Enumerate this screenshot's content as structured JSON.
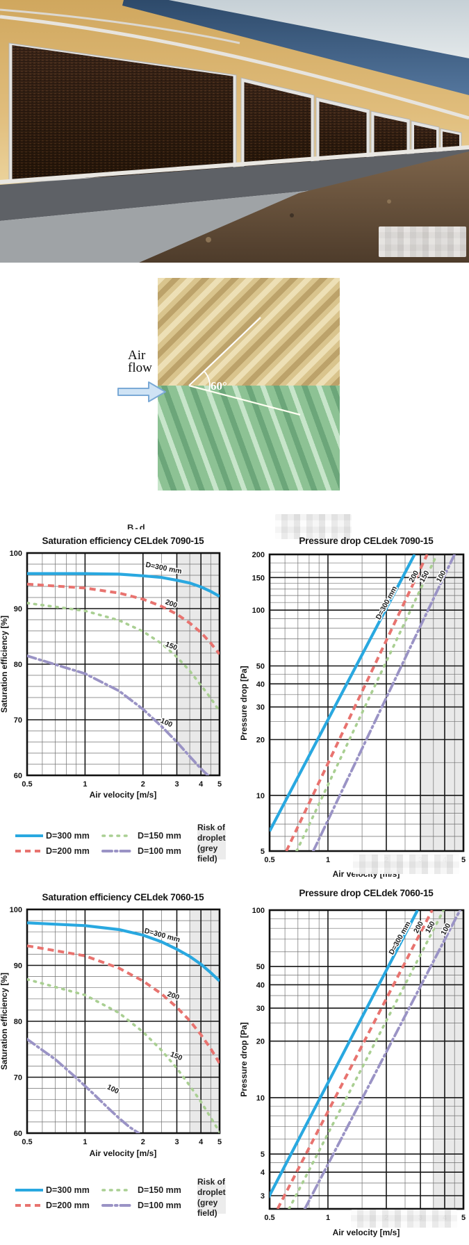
{
  "colors": {
    "blue": "#29A8E0",
    "red": "#E8736F",
    "green": "#A9CF92",
    "purple": "#9A93C5",
    "grey_band": "#E9E9E9",
    "grid_major": "#161616",
    "grid_minor": "#6F6F6F",
    "wall_yellow": "#DDB76E",
    "roof_blue": "#3F5F82",
    "sky": "#C9D2D8",
    "pad_brown": "#34200F",
    "arrow_fill": "#CFE3F5",
    "arrow_stroke": "#7AA9D6"
  },
  "airflow_figure": {
    "label_line1": "Air",
    "label_line2": "flow",
    "angle_label": "60°"
  },
  "caption_fragment": "B-d",
  "legend": {
    "items": [
      {
        "key": "d300",
        "label": "D=300 mm"
      },
      {
        "key": "d200",
        "label": "D=200 mm"
      },
      {
        "key": "d150",
        "label": "D=150 mm"
      },
      {
        "key": "d100",
        "label": "D=100 mm"
      }
    ],
    "risk_line1": "Risk of droplet",
    "risk_line2": "(grey field)"
  },
  "chart_data": [
    {
      "type": "line",
      "title": "Saturation efficiency CELdek 7090-15",
      "xlabel": "Air velocity [m/s]",
      "ylabel": "Saturation efficiency [%]",
      "xscale": "log",
      "yscale": "linear",
      "xlim": [
        0.5,
        5
      ],
      "ylim": [
        60,
        100
      ],
      "xticks": [
        0.5,
        1,
        2,
        3,
        4,
        5
      ],
      "xminor": [
        0.6,
        0.7,
        0.8,
        0.9,
        1.5,
        2.5,
        3.5,
        4.5
      ],
      "yticks": [
        60,
        70,
        80,
        90,
        100
      ],
      "yminor": [
        62,
        64,
        66,
        68,
        72,
        74,
        76,
        78,
        82,
        84,
        86,
        88,
        92,
        94,
        96,
        98
      ],
      "grey_band": [
        3,
        5
      ],
      "series": [
        {
          "name": "D=300 mm",
          "color_key": "blue",
          "dash": "solid",
          "label": {
            "text": "D=300 mm",
            "x": 2.55,
            "y": 96.9,
            "rot": 11
          },
          "points": [
            [
              0.5,
              96.3
            ],
            [
              1,
              96.3
            ],
            [
              1.5,
              96.2
            ],
            [
              2,
              95.9
            ],
            [
              2.5,
              95.6
            ],
            [
              3,
              95.1
            ],
            [
              3.5,
              94.6
            ],
            [
              4,
              93.9
            ],
            [
              4.5,
              93.1
            ],
            [
              5,
              92.2
            ]
          ]
        },
        {
          "name": "D=200 mm",
          "color_key": "red",
          "dash": "dash",
          "label": {
            "text": "200",
            "x": 2.78,
            "y": 90.5,
            "rot": 21
          },
          "points": [
            [
              0.5,
              94.4
            ],
            [
              1,
              93.7
            ],
            [
              1.5,
              92.8
            ],
            [
              2,
              91.7
            ],
            [
              2.5,
              90.4
            ],
            [
              3,
              89.0
            ],
            [
              3.5,
              87.4
            ],
            [
              4,
              85.7
            ],
            [
              4.5,
              83.8
            ],
            [
              5,
              81.8
            ]
          ]
        },
        {
          "name": "D=150 mm",
          "color_key": "green",
          "dash": "dot",
          "label": {
            "text": "150",
            "x": 2.78,
            "y": 82.9,
            "rot": 22
          },
          "points": [
            [
              0.5,
              91.0
            ],
            [
              1,
              89.6
            ],
            [
              1.5,
              87.9
            ],
            [
              2,
              85.9
            ],
            [
              2.5,
              83.7
            ],
            [
              3,
              81.3
            ],
            [
              3.5,
              78.8
            ],
            [
              4,
              76.2
            ],
            [
              4.5,
              73.9
            ],
            [
              5,
              71.5
            ]
          ]
        },
        {
          "name": "D=100 mm",
          "color_key": "purple",
          "dash": "dashdot",
          "label": {
            "text": "100",
            "x": 2.62,
            "y": 69.1,
            "rot": 24
          },
          "points": [
            [
              0.5,
              81.5
            ],
            [
              1,
              78.3
            ],
            [
              1.5,
              75.2
            ],
            [
              2,
              71.9
            ],
            [
              2.5,
              68.8
            ],
            [
              3,
              66.0
            ],
            [
              3.5,
              63.4
            ],
            [
              4,
              61.2
            ],
            [
              4.35,
              60.0
            ]
          ]
        }
      ]
    },
    {
      "type": "line",
      "title": "Pressure drop CELdek 7090-15",
      "xlabel": "Air velocity [m/s]",
      "ylabel": "Pressure drop [Pa]",
      "xscale": "log",
      "yscale": "log",
      "xlim": [
        0.5,
        5
      ],
      "ylim": [
        5,
        200
      ],
      "xticks": [
        0.5,
        1,
        2,
        3,
        4,
        5
      ],
      "xminor": [
        0.6,
        0.7,
        0.8,
        0.9,
        1.5,
        2.5,
        3.5,
        4.5
      ],
      "yticks": [
        5,
        10,
        20,
        30,
        40,
        50,
        100,
        150,
        200
      ],
      "yminor": [
        6,
        7,
        8,
        9,
        15,
        25,
        35,
        45,
        60,
        70,
        80,
        90,
        110,
        120,
        130,
        140,
        160,
        180
      ],
      "grey_band": [
        3,
        5
      ],
      "series": [
        {
          "name": "D=300 mm",
          "color_key": "blue",
          "dash": "solid",
          "label": {
            "text": "D=300 mm",
            "x": 2.05,
            "y": 108,
            "rot": -62
          },
          "points": [
            [
              0.5,
              6.4
            ],
            [
              2.8,
              200
            ]
          ]
        },
        {
          "name": "D=200 mm",
          "color_key": "red",
          "dash": "dash",
          "label": {
            "text": "200",
            "x": 2.84,
            "y": 150,
            "rot": -62
          },
          "points": [
            [
              0.61,
              5
            ],
            [
              3.25,
              200
            ]
          ]
        },
        {
          "name": "D=150 mm",
          "color_key": "green",
          "dash": "dot",
          "label": {
            "text": "150",
            "x": 3.22,
            "y": 150,
            "rot": -62
          },
          "points": [
            [
              0.69,
              5
            ],
            [
              3.65,
              200
            ]
          ]
        },
        {
          "name": "D=100 mm",
          "color_key": "purple",
          "dash": "dashdot",
          "label": {
            "text": "100",
            "x": 3.93,
            "y": 150,
            "rot": -62
          },
          "points": [
            [
              0.84,
              5
            ],
            [
              4.5,
              200
            ]
          ]
        }
      ]
    },
    {
      "type": "line",
      "title": "Saturation efficiency CELdek 7060-15",
      "xlabel": "Air velocity [m/s]",
      "ylabel": "Saturation efficiency [%]",
      "xscale": "log",
      "yscale": "linear",
      "xlim": [
        0.5,
        5
      ],
      "ylim": [
        60,
        100
      ],
      "xticks": [
        0.5,
        1,
        2,
        3,
        4,
        5
      ],
      "xminor": [
        0.6,
        0.7,
        0.8,
        0.9,
        1.5,
        2.5,
        3.5,
        4.5
      ],
      "yticks": [
        60,
        70,
        80,
        90,
        100
      ],
      "yminor": [
        62,
        64,
        66,
        68,
        72,
        74,
        76,
        78,
        82,
        84,
        86,
        88,
        92,
        94,
        96,
        98
      ],
      "grey_band": [
        3.5,
        5
      ],
      "series": [
        {
          "name": "D=300 mm",
          "color_key": "blue",
          "dash": "solid",
          "label": {
            "text": "D=300 mm",
            "x": 2.5,
            "y": 95.0,
            "rot": 15
          },
          "points": [
            [
              0.5,
              97.6
            ],
            [
              1,
              97.1
            ],
            [
              1.5,
              96.4
            ],
            [
              2,
              95.4
            ],
            [
              2.5,
              94.2
            ],
            [
              3,
              92.9
            ],
            [
              3.5,
              91.6
            ],
            [
              4,
              90.2
            ],
            [
              4.5,
              88.7
            ],
            [
              5,
              87.2
            ]
          ]
        },
        {
          "name": "D=200 mm",
          "color_key": "red",
          "dash": "dash",
          "label": {
            "text": "200",
            "x": 2.85,
            "y": 84.2,
            "rot": 20
          },
          "points": [
            [
              0.5,
              93.5
            ],
            [
              1,
              91.7
            ],
            [
              1.5,
              89.5
            ],
            [
              2,
              87.2
            ],
            [
              2.5,
              84.9
            ],
            [
              3,
              82.5
            ],
            [
              3.5,
              80.1
            ],
            [
              4,
              77.6
            ],
            [
              4.5,
              75.1
            ],
            [
              5,
              72.5
            ]
          ]
        },
        {
          "name": "D=150 mm",
          "color_key": "green",
          "dash": "dot",
          "label": {
            "text": "150",
            "x": 2.95,
            "y": 73.4,
            "rot": 22
          },
          "points": [
            [
              0.5,
              87.5
            ],
            [
              1,
              84.7
            ],
            [
              1.5,
              81.5
            ],
            [
              2,
              78.1
            ],
            [
              2.5,
              74.8
            ],
            [
              3,
              71.6
            ],
            [
              3.5,
              68.5
            ],
            [
              4,
              65.6
            ],
            [
              4.5,
              62.8
            ],
            [
              5,
              60.2
            ]
          ]
        },
        {
          "name": "D=100 mm",
          "color_key": "purple",
          "dash": "dashdot",
          "label": {
            "text": "100",
            "x": 1.38,
            "y": 67.5,
            "rot": 26
          },
          "points": [
            [
              0.5,
              76.8
            ],
            [
              0.7,
              73.2
            ],
            [
              0.9,
              69.9
            ],
            [
              1.1,
              67.1
            ],
            [
              1.3,
              64.7
            ],
            [
              1.5,
              62.7
            ],
            [
              1.7,
              61.1
            ],
            [
              1.9,
              60.0
            ]
          ]
        }
      ]
    },
    {
      "type": "line",
      "title": "Pressure drop CELdek 7060-15",
      "xlabel": "Air velocity [m/s]",
      "ylabel": "Pressure drop [Pa]",
      "xscale": "log",
      "yscale": "log",
      "xlim": [
        0.5,
        5
      ],
      "ylim": [
        2.55,
        100
      ],
      "xticks": [
        0.5,
        1,
        2,
        3,
        4,
        5
      ],
      "xminor": [
        0.6,
        0.7,
        0.8,
        0.9,
        1.5,
        2.5,
        3.5,
        4.5
      ],
      "yticks": [
        3,
        4,
        5,
        10,
        20,
        30,
        40,
        50,
        100
      ],
      "yminor": [
        3.5,
        4.5,
        6,
        7,
        8,
        9,
        15,
        25,
        35,
        45,
        60,
        70,
        80,
        90
      ],
      "grey_band": [
        3.5,
        5
      ],
      "series": [
        {
          "name": "D=300 mm",
          "color_key": "blue",
          "dash": "solid",
          "label": {
            "text": "D=300 mm",
            "x": 2.4,
            "y": 70,
            "rot": -61
          },
          "points": [
            [
              0.46,
              2.55
            ],
            [
              2.9,
              100
            ]
          ]
        },
        {
          "name": "D=200 mm",
          "color_key": "red",
          "dash": "dash",
          "label": {
            "text": "200",
            "x": 3.0,
            "y": 80,
            "rot": -61
          },
          "points": [
            [
              0.55,
              2.55
            ],
            [
              3.45,
              100
            ]
          ]
        },
        {
          "name": "D=150 mm",
          "color_key": "green",
          "dash": "dot",
          "label": {
            "text": "150",
            "x": 3.45,
            "y": 80,
            "rot": -61
          },
          "points": [
            [
              0.63,
              2.55
            ],
            [
              3.95,
              100
            ]
          ]
        },
        {
          "name": "D=100 mm",
          "color_key": "purple",
          "dash": "dashdot",
          "label": {
            "text": "100",
            "x": 4.15,
            "y": 78,
            "rot": -61
          },
          "points": [
            [
              0.76,
              2.55
            ],
            [
              4.8,
              100
            ]
          ]
        }
      ]
    }
  ]
}
